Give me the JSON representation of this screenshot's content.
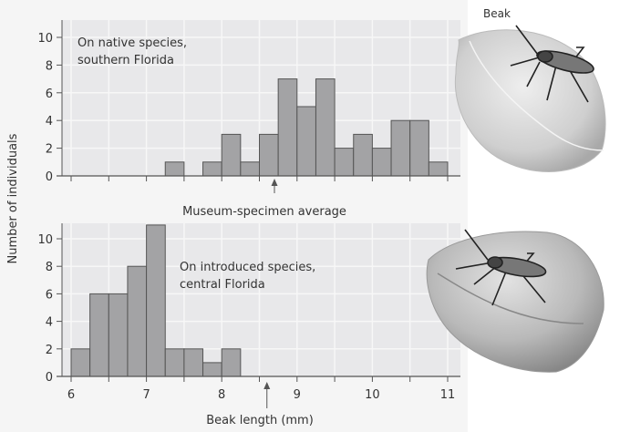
{
  "chart_data": [
    {
      "type": "bar",
      "panel": "top",
      "annotation": [
        "On native species,",
        "southern Florida"
      ],
      "bin_width": 0.25,
      "bin_starts": [
        6.0,
        6.25,
        6.5,
        6.75,
        7.0,
        7.25,
        7.5,
        7.75,
        8.0,
        8.25,
        8.5,
        8.75,
        9.0,
        9.25,
        9.5,
        9.75,
        10.0,
        10.25,
        10.5,
        10.75
      ],
      "values": [
        0,
        0,
        0,
        0,
        0,
        1,
        0,
        1,
        3,
        1,
        3,
        7,
        5,
        7,
        2,
        3,
        2,
        4,
        4,
        1
      ],
      "ylim": [
        0,
        11
      ],
      "yticks": [
        "0",
        "2",
        "4",
        "6",
        "8",
        "10"
      ],
      "museum_average": 8.7
    },
    {
      "type": "bar",
      "panel": "bottom",
      "annotation": [
        "On introduced species,",
        "central Florida"
      ],
      "bin_width": 0.25,
      "bin_starts": [
        6.0,
        6.25,
        6.5,
        6.75,
        7.0,
        7.25,
        7.5,
        7.75,
        8.0
      ],
      "values": [
        2,
        6,
        6,
        8,
        11,
        2,
        2,
        1,
        2
      ],
      "ylim": [
        0,
        11
      ],
      "yticks": [
        "0",
        "2",
        "4",
        "6",
        "8",
        "10"
      ],
      "museum_average": 8.6
    }
  ],
  "axes": {
    "xlabel": "Beak length (mm)",
    "ylabel": "Number of individuals",
    "xlim": [
      6,
      11
    ],
    "xticks": [
      "6",
      "7",
      "8",
      "9",
      "10",
      "11"
    ]
  },
  "museum_label": "Museum-specimen average",
  "illustration": {
    "beak_label": "Beak"
  },
  "colors": {
    "bar": "#a3a3a5",
    "panel": "#e8e8ea",
    "grid": "#f7f7f7",
    "axis": "#555555"
  }
}
